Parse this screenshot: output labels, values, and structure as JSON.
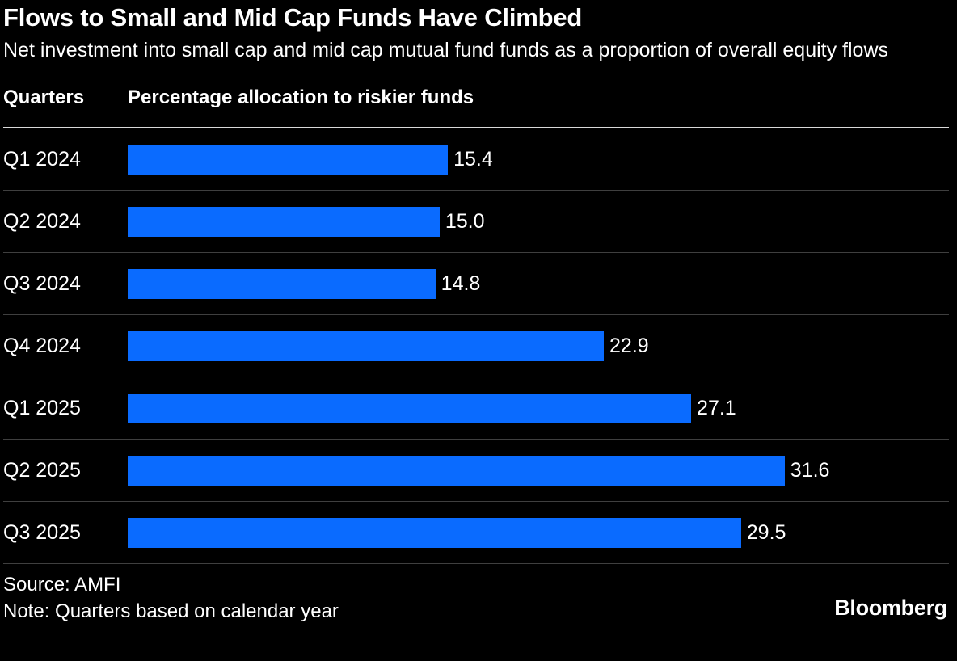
{
  "chart_data": {
    "type": "bar",
    "orientation": "horizontal",
    "title": "Flows to Small and Mid Cap Funds Have Climbed",
    "subtitle": "Net investment into small cap and mid cap mutual fund funds as a proportion of overall equity flows",
    "column_headers": {
      "category": "Quarters",
      "value": "Percentage allocation to riskier funds"
    },
    "categories": [
      "Q1 2024",
      "Q2 2024",
      "Q3 2024",
      "Q4 2024",
      "Q1 2025",
      "Q2 2025",
      "Q3 2025"
    ],
    "values": [
      15.4,
      15.0,
      14.8,
      22.9,
      27.1,
      31.6,
      29.5
    ],
    "value_labels": [
      "15.4",
      "15.0",
      "14.8",
      "22.9",
      "27.1",
      "31.6",
      "29.5"
    ],
    "xmax": 39.5,
    "bar_color": "#0a6bff",
    "grid": "row-separators-only",
    "legend": "none"
  },
  "footer": {
    "source": "Source: AMFI",
    "note": "Note: Quarters based on calendar year",
    "brand": "Bloomberg"
  }
}
